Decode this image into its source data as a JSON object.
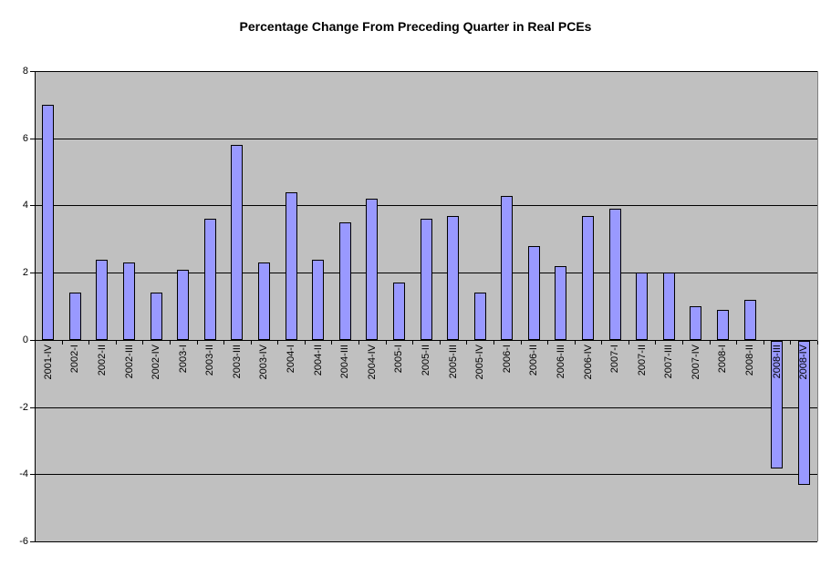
{
  "chart_data": {
    "type": "bar",
    "title": "Percentage Change From Preceding Quarter in Real PCEs",
    "xlabel": "",
    "ylabel": "",
    "categories": [
      "2001-IV",
      "2002-I",
      "2002-II",
      "2002-III",
      "2002-IV",
      "2003-I",
      "2003-II",
      "2003-III",
      "2003-IV",
      "2004-I",
      "2004-II",
      "2004-III",
      "2004-IV",
      "2005-I",
      "2005-II",
      "2005-III",
      "2005-IV",
      "2006-I",
      "2006-II",
      "2006-III",
      "2006-IV",
      "2007-I",
      "2007-II",
      "2007-III",
      "2007-IV",
      "2008-I",
      "2008-II",
      "2008-III",
      "2008-IV"
    ],
    "values": [
      7.0,
      1.4,
      2.4,
      2.3,
      1.4,
      2.1,
      3.6,
      5.8,
      2.3,
      4.4,
      2.4,
      3.5,
      4.2,
      1.7,
      3.6,
      3.7,
      1.4,
      4.3,
      2.8,
      2.2,
      3.7,
      3.9,
      2.0,
      2.0,
      1.0,
      0.9,
      1.2,
      -3.8,
      -4.3
    ],
    "ylim": [
      -6,
      8
    ],
    "yticks": [
      8,
      6,
      4,
      2,
      0,
      -2,
      -4,
      -6
    ],
    "grid": true,
    "legend": false,
    "colors": {
      "bar_fill": "#9999FF",
      "bar_border": "#000000",
      "plot_background": "#C0C0C0",
      "gridline": "#000000",
      "chart_background": "#FFFFFF",
      "text": "#000000"
    }
  }
}
